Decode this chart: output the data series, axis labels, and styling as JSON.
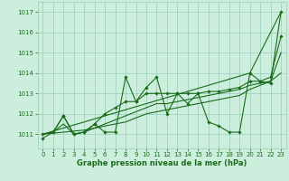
{
  "title": "Graphe pression niveau de la mer (hPa)",
  "background_color": "#cceedd",
  "grid_color": "#99ccbb",
  "line_color": "#1a6b1a",
  "marker_color": "#1a6b1a",
  "xlim": [
    -0.5,
    23.5
  ],
  "ylim": [
    1010.3,
    1017.5
  ],
  "yticks": [
    1011,
    1012,
    1013,
    1014,
    1015,
    1016,
    1017
  ],
  "xticks": [
    0,
    1,
    2,
    3,
    4,
    5,
    6,
    7,
    8,
    9,
    10,
    11,
    12,
    13,
    14,
    15,
    16,
    17,
    18,
    19,
    20,
    21,
    22,
    23
  ],
  "series1": [
    1010.8,
    1011.1,
    1011.9,
    1011.0,
    1011.1,
    1011.5,
    1011.1,
    1011.1,
    1013.8,
    1012.6,
    1013.3,
    1013.8,
    1012.0,
    1013.0,
    1012.5,
    1013.0,
    1011.6,
    1011.4,
    1011.1,
    1011.1,
    1014.0,
    1013.6,
    1013.5,
    1017.0
  ],
  "series2": [
    1011.0,
    1011.1,
    1011.9,
    1011.0,
    1011.1,
    1011.5,
    1012.0,
    1012.3,
    1012.6,
    1012.6,
    1013.0,
    1013.0,
    1013.0,
    1013.0,
    1013.0,
    1013.0,
    1013.1,
    1013.1,
    1013.2,
    1013.3,
    1013.6,
    1013.6,
    1013.8,
    1015.8
  ],
  "series3": [
    1011.0,
    1011.1,
    1011.5,
    1011.0,
    1011.1,
    1011.3,
    1011.5,
    1011.7,
    1011.9,
    1012.1,
    1012.3,
    1012.5,
    1012.5,
    1012.6,
    1012.7,
    1012.8,
    1012.9,
    1013.0,
    1013.1,
    1013.2,
    1013.4,
    1013.5,
    1013.6,
    1015.0
  ],
  "series_trend1": [
    1011.0,
    1011.15,
    1011.3,
    1011.45,
    1011.6,
    1011.75,
    1011.9,
    1012.05,
    1012.2,
    1012.35,
    1012.5,
    1012.65,
    1012.8,
    1012.95,
    1013.1,
    1013.25,
    1013.4,
    1013.55,
    1013.7,
    1013.85,
    1014.0,
    1015.0,
    1016.0,
    1017.0
  ],
  "series_trend2": [
    1011.0,
    1011.05,
    1011.1,
    1011.15,
    1011.2,
    1011.3,
    1011.4,
    1011.5,
    1011.6,
    1011.8,
    1012.0,
    1012.1,
    1012.2,
    1012.3,
    1012.4,
    1012.5,
    1012.6,
    1012.7,
    1012.8,
    1012.9,
    1013.2,
    1013.4,
    1013.6,
    1014.0
  ],
  "title_fontsize": 6,
  "tick_fontsize": 5,
  "linewidth": 0.8
}
